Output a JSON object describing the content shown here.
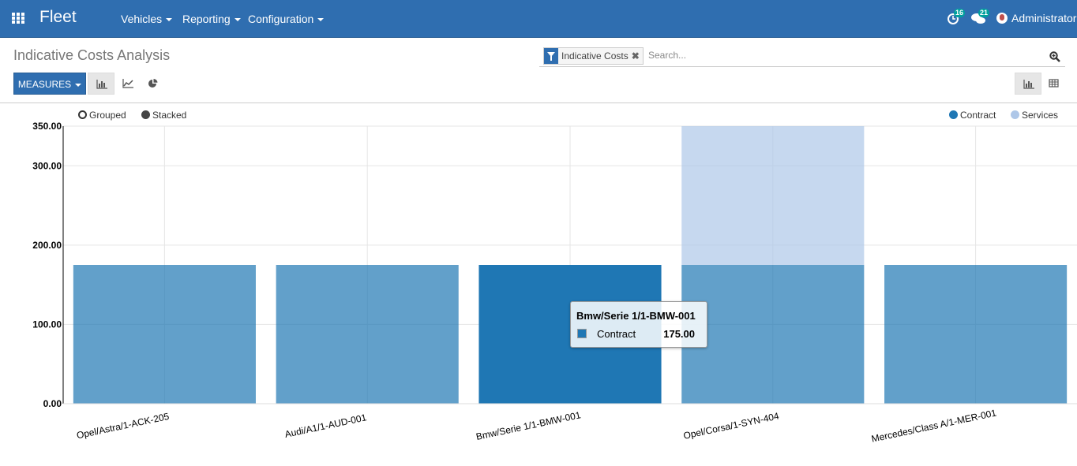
{
  "navbar": {
    "brand": "Fleet",
    "menus": [
      {
        "label": "Vehicles"
      },
      {
        "label": "Reporting"
      },
      {
        "label": "Configuration"
      }
    ],
    "activities_count": "16",
    "messages_count": "21",
    "user_name": "Administrator"
  },
  "control_panel": {
    "title": "Indicative Costs Analysis",
    "facet_label": "Indicative Costs",
    "search_placeholder": "Search...",
    "measures_label": "MEASURES"
  },
  "legend": {
    "grouped": "Grouped",
    "stacked": "Stacked"
  },
  "chart_data": {
    "type": "bar",
    "stacked": true,
    "categories": [
      "Opel/Astra/1-ACK-205",
      "Audi/A1/1-AUD-001",
      "Bmw/Serie 1/1-BMW-001",
      "Opel/Corsa/1-SYN-404",
      "Mercedes/Class A/1-MER-001"
    ],
    "series": [
      {
        "name": "Contract",
        "color": "#1f77b4",
        "values": [
          175,
          175,
          175,
          175,
          175
        ]
      },
      {
        "name": "Services",
        "color": "#aec7e8",
        "values": [
          0,
          0,
          0,
          175,
          0
        ]
      }
    ],
    "ylim": [
      0,
      350
    ],
    "y_ticks": [
      "0.00",
      "100.00",
      "200.00",
      "300.00",
      "350.00"
    ],
    "legend_position": "top-right",
    "grid": true
  },
  "tooltip": {
    "title": "Bmw/Serie 1/1-BMW-001",
    "series": "Contract",
    "value": "175.00"
  }
}
